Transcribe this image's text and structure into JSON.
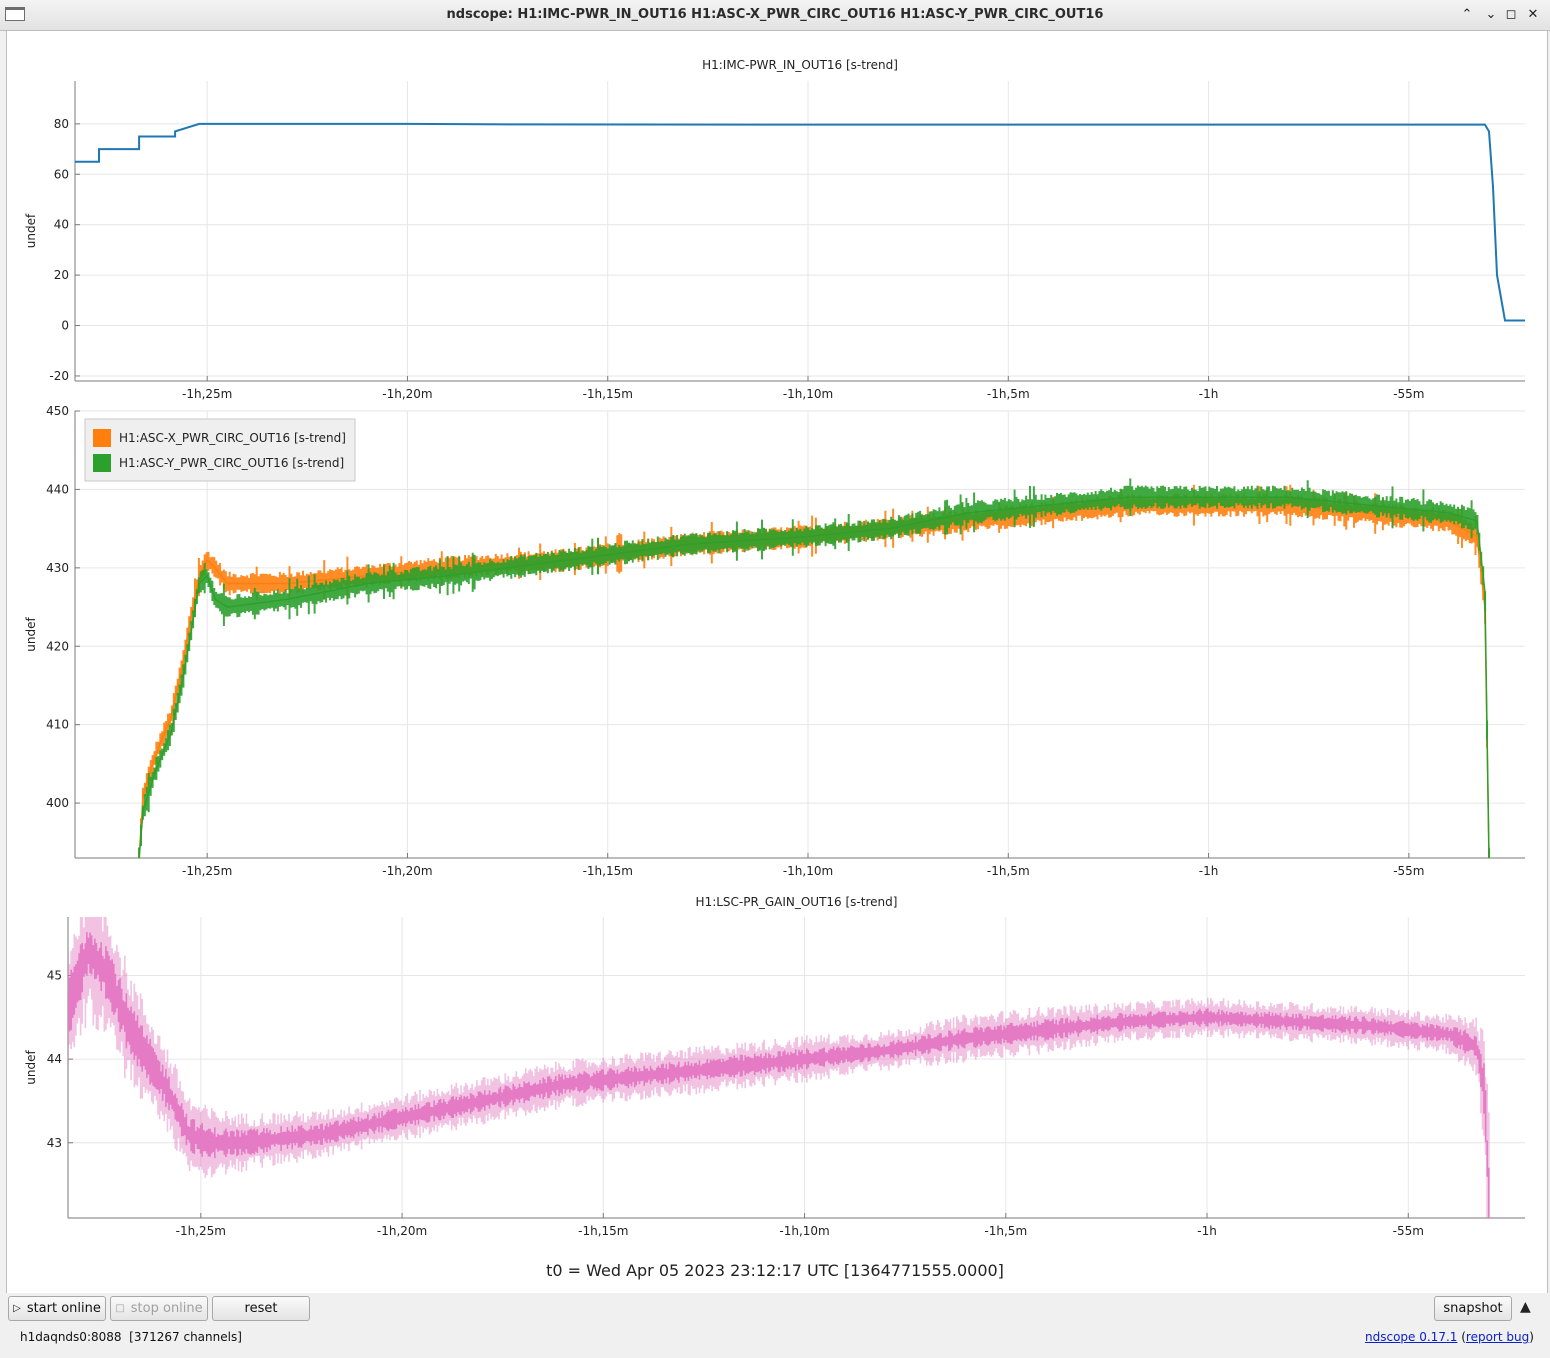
{
  "window": {
    "title": "ndscope: H1:IMC-PWR_IN_OUT16 H1:ASC-X_PWR_CIRC_OUT16 H1:ASC-Y_PWR_CIRC_OUT16"
  },
  "controls": {
    "start_online": "start online",
    "stop_online": "stop online",
    "reset": "reset",
    "snapshot": "snapshot",
    "expand_icon": "triangle-up-icon"
  },
  "t0_label": "t0 = Wed Apr 05 2023 23:12:17 UTC [1364771555.0000]",
  "status": {
    "server": "h1daqnds0:8088",
    "channels": "[371267 channels]",
    "version_link": "ndscope 0.17.1",
    "paren_open": "(",
    "report_link": "report bug",
    "paren_close": ")"
  },
  "colors": {
    "imc": "#1f77b4",
    "asc_x": "#ff7f0e",
    "asc_y": "#2ca02c",
    "lsc": "#e377c2"
  },
  "chart_data": [
    {
      "type": "line",
      "title": "H1:IMC-PWR_IN_OUT16 [s-trend]",
      "ylabel": "undef",
      "x_unit": "minutes relative to t0",
      "xlim": [
        -88.3,
        -52.1
      ],
      "ylim": [
        -22,
        97
      ],
      "xticks": [
        -85,
        -80,
        -75,
        -70,
        -65,
        -60,
        -55
      ],
      "xtick_labels": [
        "-1h,25m",
        "-1h,20m",
        "-1h,15m",
        "-1h,10m",
        "-1h,5m",
        "-1h",
        "-55m"
      ],
      "yticks": [
        -20,
        0,
        20,
        40,
        60,
        80
      ],
      "grid": true,
      "series": [
        {
          "x": [
            -88.3,
            -87.7,
            -87.7,
            -86.7,
            -86.7,
            -85.8,
            -85.8,
            -85.2,
            -85.0,
            -80.0,
            -77.3,
            -70.0,
            -60.0,
            -53.1,
            -53.0,
            -52.9,
            -52.8,
            -52.6,
            -52.4,
            -52.1
          ],
          "y": [
            65,
            65,
            70,
            70,
            75,
            75,
            77,
            80,
            80,
            80,
            79.8,
            79.7,
            79.7,
            79.7,
            77,
            55,
            20,
            2,
            2,
            2
          ]
        }
      ]
    },
    {
      "type": "line",
      "title": "",
      "ylabel": "undef",
      "x_unit": "minutes relative to t0",
      "xlim": [
        -88.3,
        -52.1
      ],
      "ylim": [
        393,
        450
      ],
      "xticks": [
        -85,
        -80,
        -75,
        -70,
        -65,
        -60,
        -55
      ],
      "xtick_labels": [
        "-1h,25m",
        "-1h,20m",
        "-1h,15m",
        "-1h,10m",
        "-1h,5m",
        "-1h",
        "-55m"
      ],
      "yticks": [
        400,
        410,
        420,
        430,
        440,
        450
      ],
      "grid": true,
      "legend": "top-left",
      "series": [
        {
          "name": "H1:ASC-X_PWR_CIRC_OUT16 [s-trend]",
          "x": [
            -86.7,
            -86.6,
            -86.3,
            -85.9,
            -85.6,
            -85.4,
            -85.2,
            -85.0,
            -84.8,
            -84.5,
            -83.0,
            -81.0,
            -79.0,
            -76.0,
            -73.0,
            -70.0,
            -68.0,
            -66.0,
            -64.0,
            -62.0,
            -60.0,
            -58.0,
            -56.0,
            -54.0,
            -53.3,
            -53.1,
            -53.0
          ],
          "y": [
            393,
            401,
            406,
            411,
            418,
            424,
            429,
            431,
            430,
            428,
            428,
            429,
            430,
            431,
            433,
            434,
            435,
            436,
            437,
            438,
            438,
            438,
            437,
            436,
            434,
            425,
            393
          ]
        },
        {
          "name": "H1:ASC-Y_PWR_CIRC_OUT16 [s-trend]",
          "x": [
            -86.7,
            -86.6,
            -86.3,
            -85.9,
            -85.6,
            -85.4,
            -85.2,
            -85.0,
            -84.8,
            -84.5,
            -83.0,
            -81.0,
            -79.0,
            -76.0,
            -73.0,
            -70.0,
            -68.0,
            -66.0,
            -64.0,
            -62.0,
            -60.0,
            -58.0,
            -56.0,
            -54.0,
            -53.3,
            -53.1,
            -53.0
          ],
          "y": [
            393,
            399,
            404,
            409,
            416,
            422,
            428,
            429,
            426,
            425,
            426,
            428,
            429,
            431,
            433,
            434,
            435,
            437,
            438,
            439,
            439,
            439,
            438,
            437,
            436,
            427,
            393
          ]
        }
      ]
    },
    {
      "type": "line",
      "title": "H1:LSC-PR_GAIN_OUT16 [s-trend]",
      "ylabel": "undef",
      "x_unit": "minutes relative to t0",
      "xlim": [
        -88.3,
        -52.1
      ],
      "ylim": [
        42.1,
        45.7
      ],
      "xticks": [
        -85,
        -80,
        -75,
        -70,
        -65,
        -60,
        -55
      ],
      "xtick_labels": [
        "-1h,25m",
        "-1h,20m",
        "-1h,15m",
        "-1h,10m",
        "-1h,5m",
        "-1h",
        "-55m"
      ],
      "yticks": [
        43,
        44,
        45
      ],
      "grid": true,
      "series": [
        {
          "x": [
            -88.3,
            -87.8,
            -87.3,
            -86.8,
            -86.3,
            -85.8,
            -85.3,
            -84.8,
            -84.0,
            -82.0,
            -80.0,
            -78.0,
            -76.0,
            -74.0,
            -72.0,
            -70.0,
            -68.0,
            -66.0,
            -64.0,
            -62.0,
            -60.0,
            -58.0,
            -56.0,
            -54.0,
            -53.3,
            -53.1,
            -53.0
          ],
          "y": [
            44.6,
            45.3,
            45.0,
            44.4,
            44.0,
            43.6,
            43.1,
            43.0,
            43.0,
            43.1,
            43.3,
            43.5,
            43.7,
            43.8,
            43.9,
            44.0,
            44.1,
            44.25,
            44.35,
            44.45,
            44.5,
            44.45,
            44.4,
            44.3,
            44.15,
            43.6,
            42.3
          ],
          "noise": [
            0.35,
            0.35,
            0.35,
            0.3,
            0.25,
            0.22,
            0.2,
            0.18,
            0.15,
            0.12,
            0.12,
            0.12,
            0.12,
            0.12,
            0.12,
            0.12,
            0.1,
            0.12,
            0.12,
            0.1,
            0.1,
            0.1,
            0.1,
            0.1,
            0.15,
            0.3,
            0.5
          ]
        }
      ]
    }
  ]
}
